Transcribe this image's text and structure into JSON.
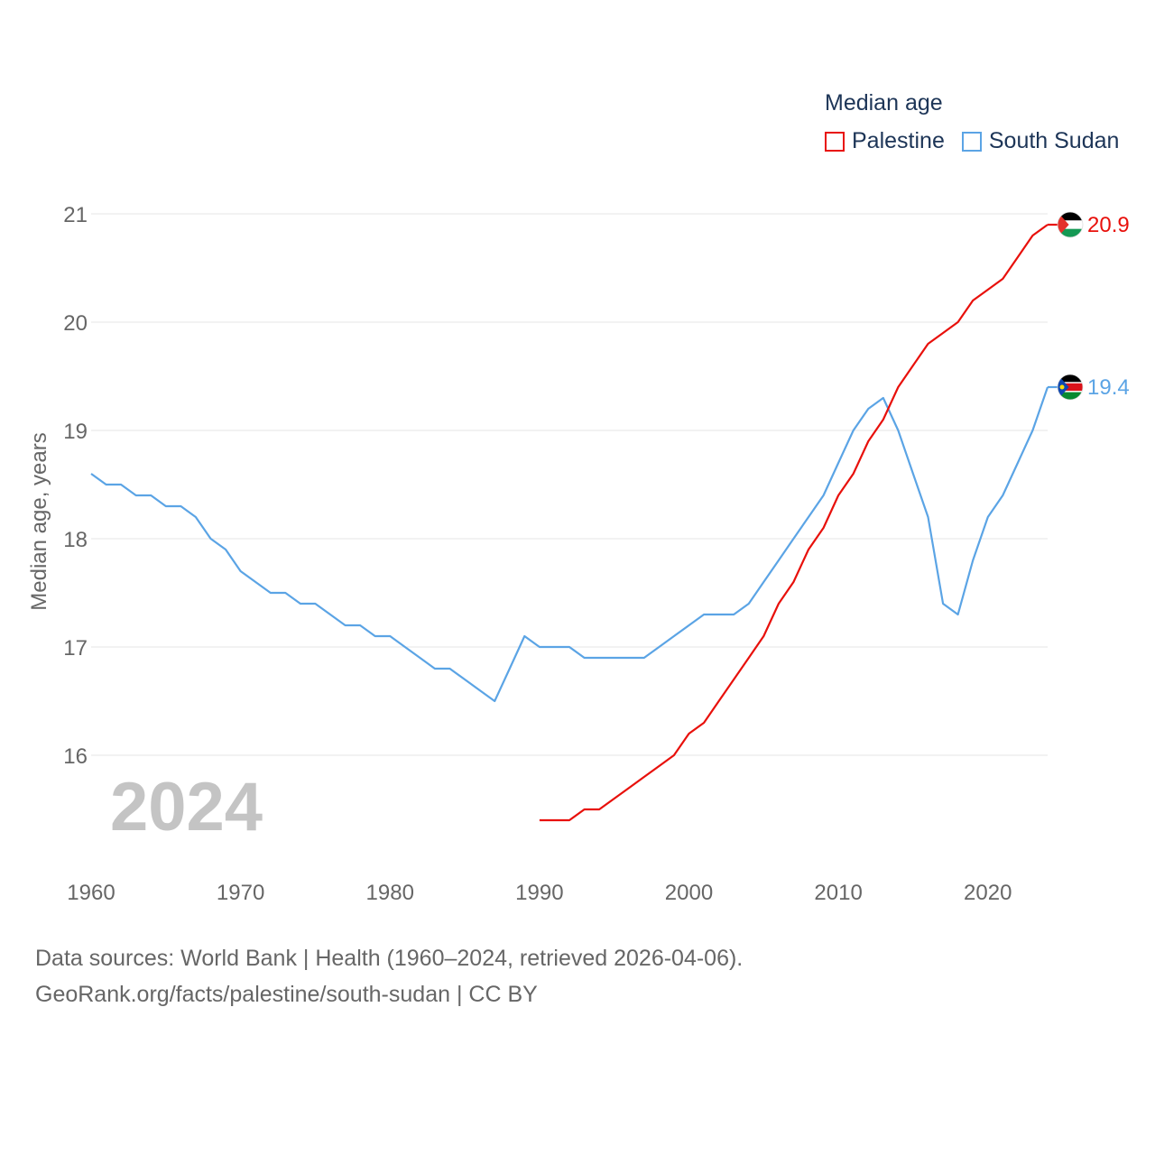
{
  "chart_data": {
    "type": "line",
    "title": "Median age",
    "ylabel": "Median age, years",
    "xlabel": "",
    "year_watermark": "2024",
    "xlim": [
      1960,
      2024
    ],
    "ylim": [
      15.0,
      21.3
    ],
    "xticks": [
      1960,
      1970,
      1980,
      1990,
      2000,
      2010,
      2020
    ],
    "yticks": [
      16,
      17,
      18,
      19,
      20,
      21
    ],
    "grid": true,
    "legend_placement": "top-right",
    "series": [
      {
        "name": "Palestine",
        "color": "#e8100b",
        "end_label": "20.9",
        "flag_icon": "palestine-flag-icon",
        "x": [
          1990,
          1991,
          1992,
          1993,
          1994,
          1995,
          1996,
          1997,
          1998,
          1999,
          2000,
          2001,
          2002,
          2003,
          2004,
          2005,
          2006,
          2007,
          2008,
          2009,
          2010,
          2011,
          2012,
          2013,
          2014,
          2015,
          2016,
          2017,
          2018,
          2019,
          2020,
          2021,
          2022,
          2023,
          2024
        ],
        "values": [
          15.4,
          15.4,
          15.4,
          15.5,
          15.5,
          15.6,
          15.7,
          15.8,
          15.9,
          16.0,
          16.2,
          16.3,
          16.5,
          16.7,
          16.9,
          17.1,
          17.4,
          17.6,
          17.9,
          18.1,
          18.4,
          18.6,
          18.9,
          19.1,
          19.4,
          19.6,
          19.8,
          19.9,
          20.0,
          20.2,
          20.3,
          20.4,
          20.6,
          20.8,
          20.9
        ]
      },
      {
        "name": "South Sudan",
        "color": "#5ba4e5",
        "end_label": "19.4",
        "flag_icon": "south-sudan-flag-icon",
        "x": [
          1960,
          1961,
          1962,
          1963,
          1964,
          1965,
          1966,
          1967,
          1968,
          1969,
          1970,
          1971,
          1972,
          1973,
          1974,
          1975,
          1976,
          1977,
          1978,
          1979,
          1980,
          1981,
          1982,
          1983,
          1984,
          1985,
          1986,
          1987,
          1988,
          1989,
          1990,
          1991,
          1992,
          1993,
          1994,
          1995,
          1996,
          1997,
          1998,
          1999,
          2000,
          2001,
          2002,
          2003,
          2004,
          2005,
          2006,
          2007,
          2008,
          2009,
          2010,
          2011,
          2012,
          2013,
          2014,
          2015,
          2016,
          2017,
          2018,
          2019,
          2020,
          2021,
          2022,
          2023,
          2024
        ],
        "values": [
          18.6,
          18.5,
          18.5,
          18.4,
          18.4,
          18.3,
          18.3,
          18.2,
          18.0,
          17.9,
          17.7,
          17.6,
          17.5,
          17.5,
          17.4,
          17.4,
          17.3,
          17.2,
          17.2,
          17.1,
          17.1,
          17.0,
          16.9,
          16.8,
          16.8,
          16.7,
          16.6,
          16.5,
          16.8,
          17.1,
          17.0,
          17.0,
          17.0,
          16.9,
          16.9,
          16.9,
          16.9,
          16.9,
          17.0,
          17.1,
          17.2,
          17.3,
          17.3,
          17.3,
          17.4,
          17.6,
          17.8,
          18.0,
          18.2,
          18.4,
          18.7,
          19.0,
          19.2,
          19.3,
          19.0,
          18.6,
          18.2,
          17.4,
          17.3,
          17.8,
          18.2,
          18.4,
          18.7,
          19.0,
          19.4
        ]
      }
    ]
  },
  "footer": {
    "line1": "Data sources: World Bank | Health (1960–2024, retrieved 2026-04-06).",
    "line2": "GeoRank.org/facts/palestine/south-sudan | CC BY"
  }
}
